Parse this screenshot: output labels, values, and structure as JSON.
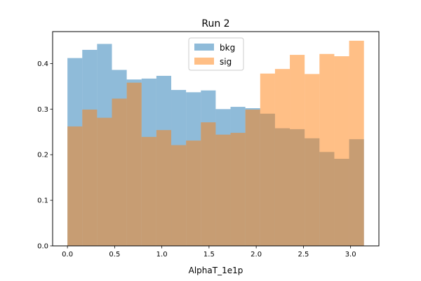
{
  "chart_data": {
    "type": "bar",
    "title": "Run 2",
    "xlabel": "AlphaT_1e1p",
    "ylabel": "",
    "xlim": [
      -0.157,
      3.3
    ],
    "ylim": [
      0,
      0.47
    ],
    "xticks": [
      0.0,
      0.5,
      1.0,
      1.5,
      2.0,
      2.5,
      3.0
    ],
    "xtick_labels": [
      "0.0",
      "0.5",
      "1.0",
      "1.5",
      "2.0",
      "2.5",
      "3.0"
    ],
    "yticks": [
      0.0,
      0.1,
      0.2,
      0.3,
      0.4
    ],
    "ytick_labels": [
      "0.0",
      "0.1",
      "0.2",
      "0.3",
      "0.4"
    ],
    "bin_range": [
      0,
      3.1416
    ],
    "bin_count": 20,
    "legend_position": "top-center",
    "series": [
      {
        "name": "bkg",
        "color": "#1f77b4",
        "alpha": 0.5,
        "values": [
          0.412,
          0.43,
          0.443,
          0.386,
          0.365,
          0.367,
          0.373,
          0.342,
          0.337,
          0.341,
          0.3,
          0.305,
          0.302,
          0.29,
          0.258,
          0.256,
          0.236,
          0.206,
          0.191,
          0.234
        ]
      },
      {
        "name": "sig",
        "color": "#ff7f0e",
        "alpha": 0.5,
        "values": [
          0.262,
          0.299,
          0.281,
          0.323,
          0.358,
          0.239,
          0.254,
          0.221,
          0.231,
          0.271,
          0.244,
          0.248,
          0.299,
          0.378,
          0.388,
          0.419,
          0.377,
          0.421,
          0.416,
          0.45
        ]
      }
    ]
  }
}
